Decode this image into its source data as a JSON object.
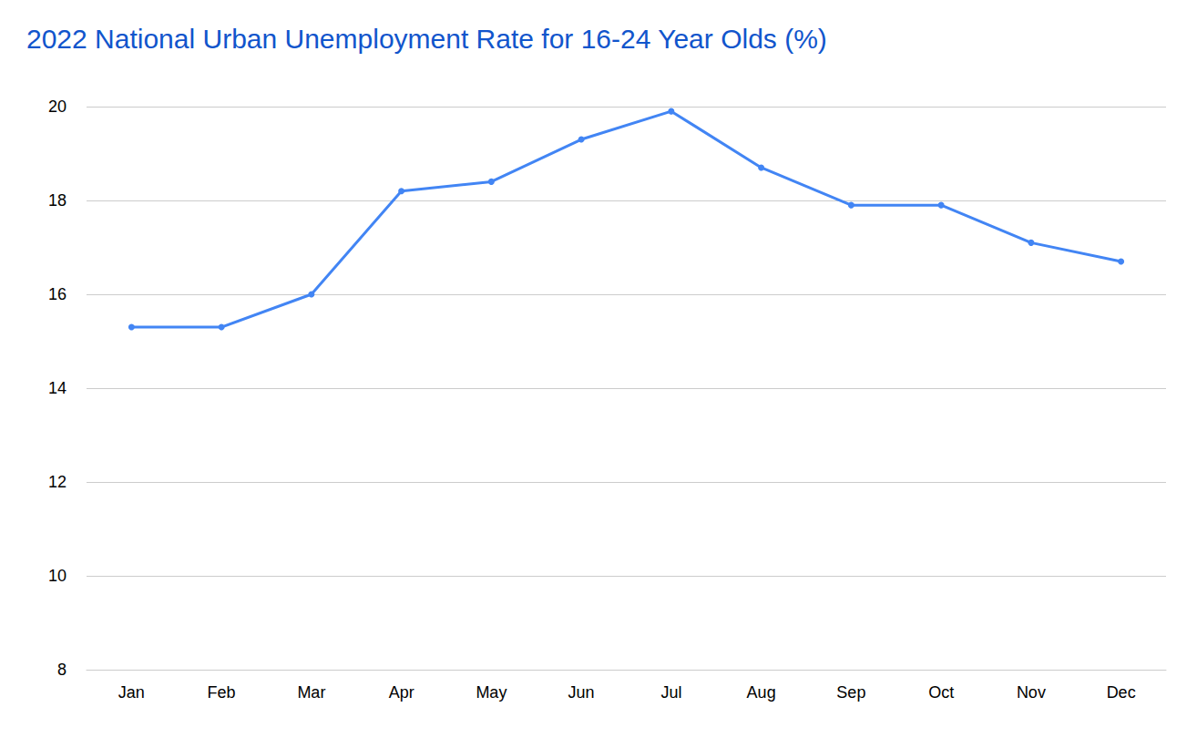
{
  "chart_data": {
    "type": "line",
    "title": "2022 National Urban Unemployment Rate for 16-24 Year Olds (%)",
    "categories": [
      "Jan",
      "Feb",
      "Mar",
      "Apr",
      "May",
      "Jun",
      "Jul",
      "Aug",
      "Sep",
      "Oct",
      "Nov",
      "Dec"
    ],
    "values": [
      15.3,
      15.3,
      16.0,
      18.2,
      18.4,
      19.3,
      19.9,
      18.7,
      17.9,
      17.9,
      17.1,
      16.7
    ],
    "color": "#4285f4",
    "ylim": [
      8,
      20
    ],
    "yticks": [
      8,
      10,
      12,
      14,
      16,
      18,
      20
    ],
    "grid": true,
    "marker": "circle"
  }
}
